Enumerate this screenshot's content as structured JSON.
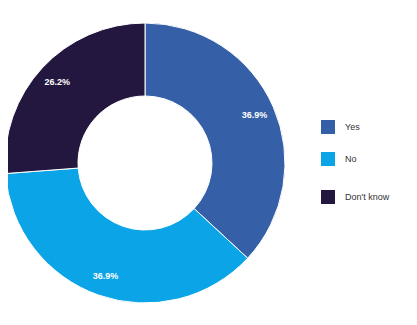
{
  "chart_data": {
    "type": "pie",
    "categories": [
      "Yes",
      "No",
      "Don't know"
    ],
    "values": [
      36.9,
      36.9,
      26.2
    ],
    "value_labels": [
      "36.9%",
      "36.9%",
      "26.2%"
    ],
    "colors": [
      "#3560a8",
      "#0ba4e6",
      "#24173f"
    ],
    "data_labels": true,
    "legend": "right",
    "donut": true
  }
}
